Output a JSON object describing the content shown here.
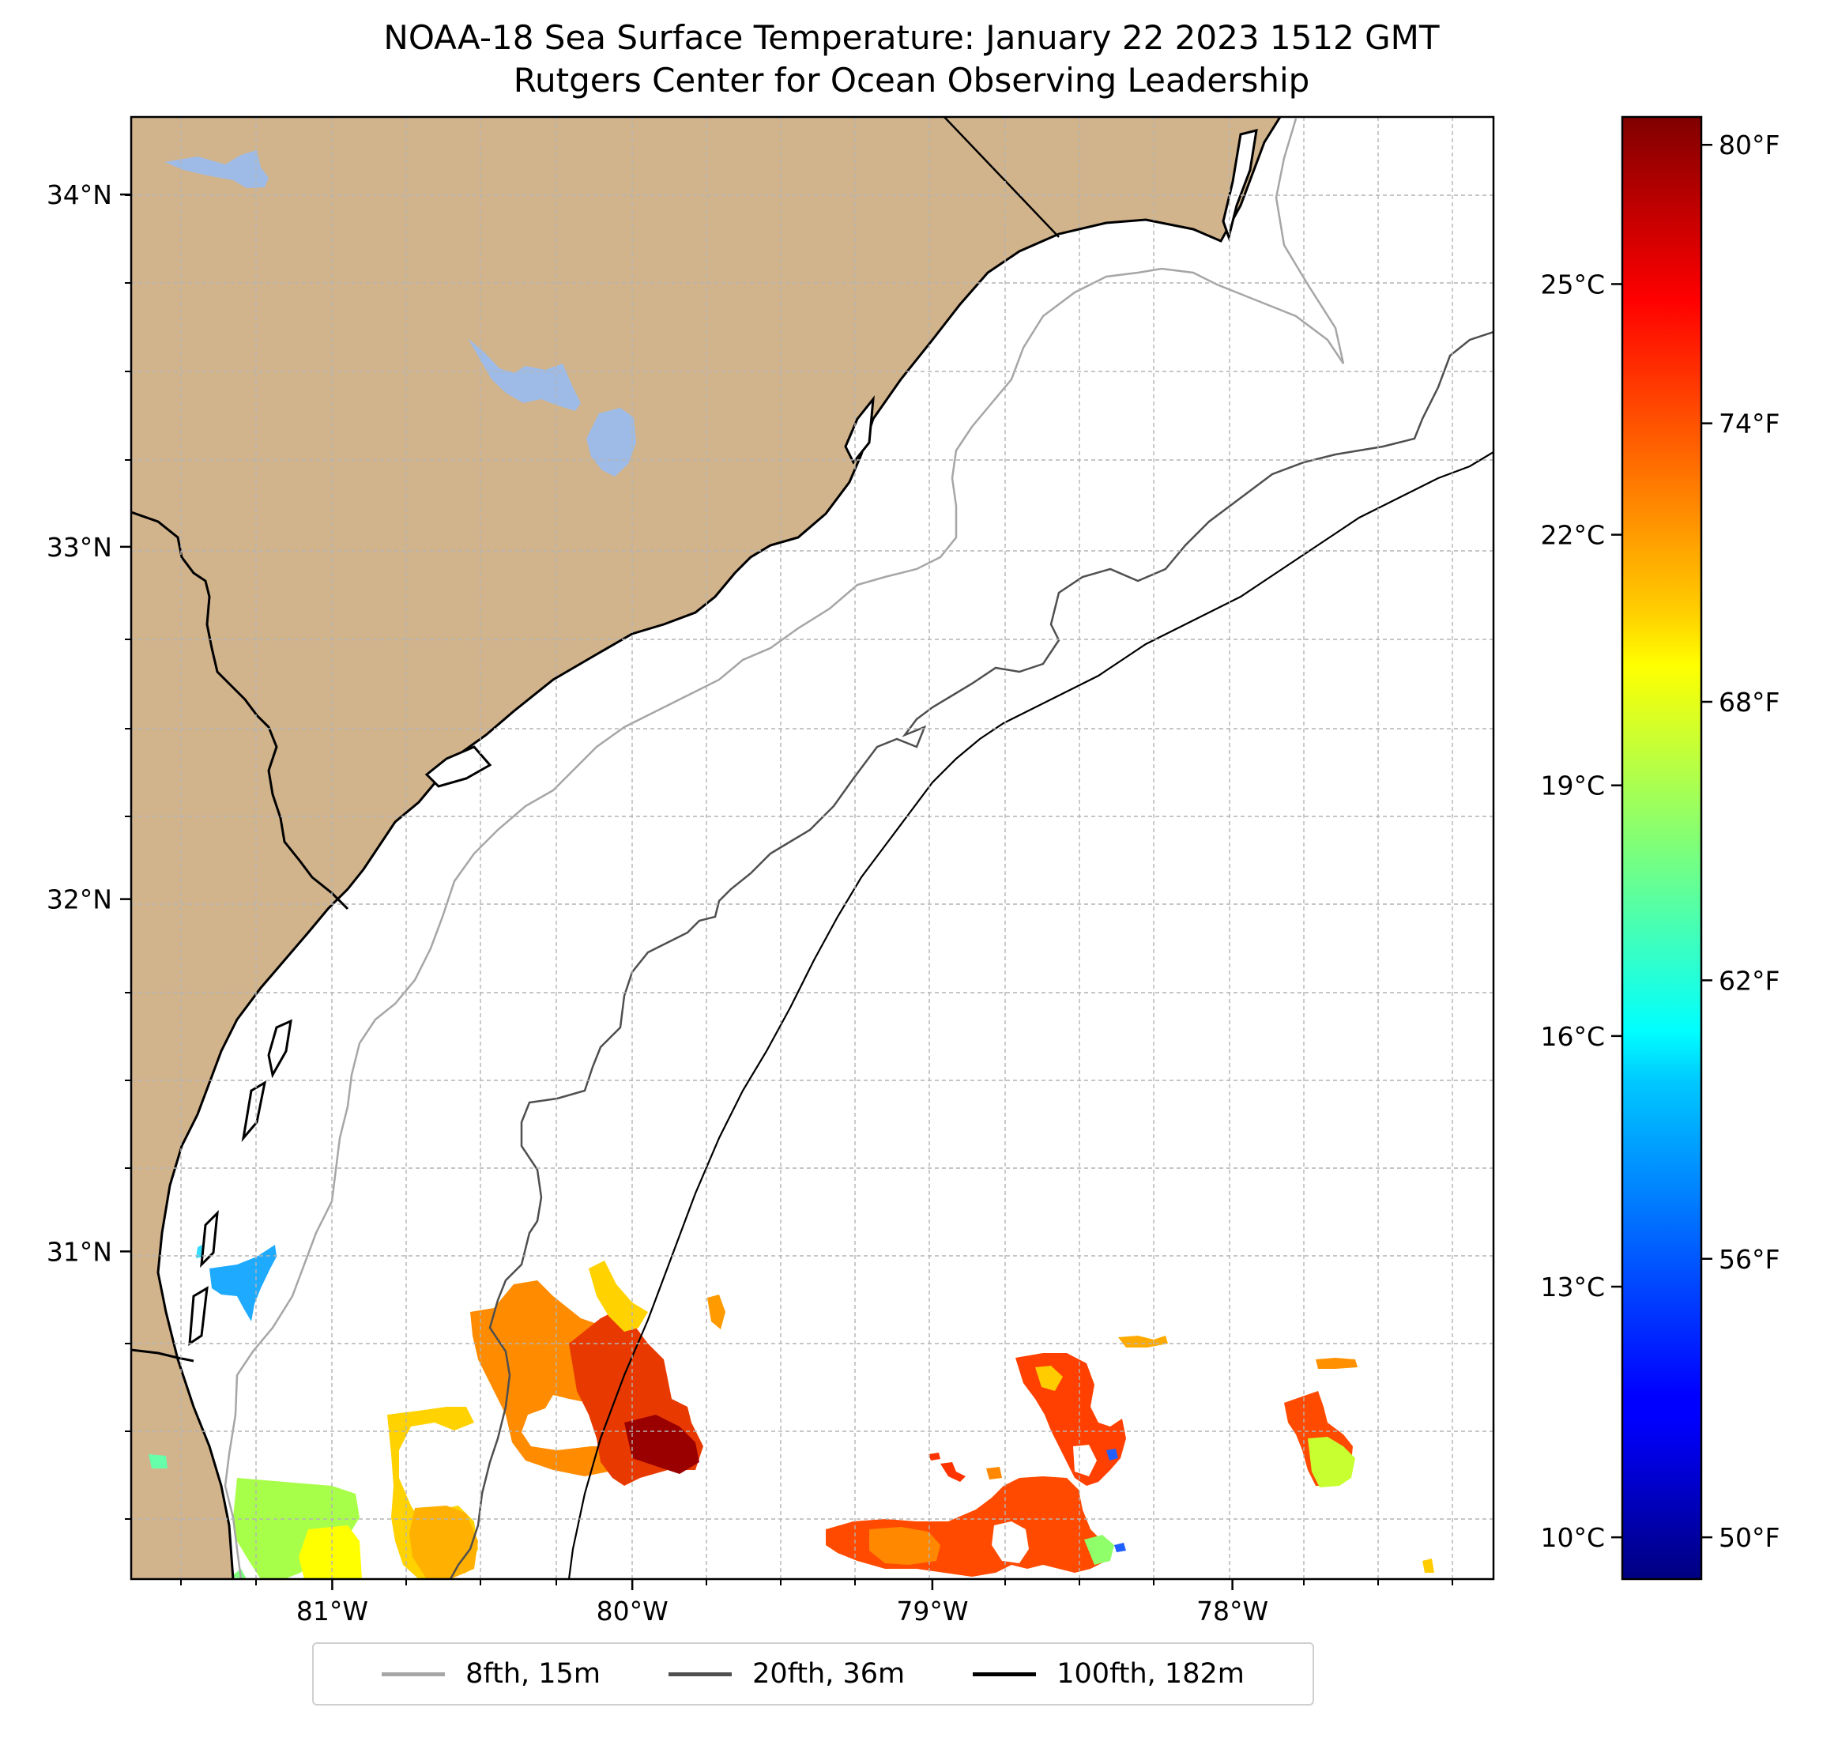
{
  "title": {
    "line1": "NOAA-18 Sea Surface Temperature: January 22 2023 1512 GMT",
    "line2": "Rutgers Center for Ocean Observing Leadership"
  },
  "map": {
    "extent": {
      "lon_min": -81.67,
      "lon_max": -77.13,
      "lat_min": 30.07,
      "lat_max": 34.22
    },
    "lon_ticks": [
      {
        "value": -81,
        "label": "81°W"
      },
      {
        "value": -80,
        "label": "80°W"
      },
      {
        "value": -79,
        "label": "79°W"
      },
      {
        "value": -78,
        "label": "78°W"
      }
    ],
    "lat_ticks": [
      {
        "value": 34,
        "label": "34°N"
      },
      {
        "value": 33,
        "label": "33°N"
      },
      {
        "value": 32,
        "label": "32°N"
      },
      {
        "value": 31,
        "label": "31°N"
      }
    ],
    "gridlines": true,
    "colors": {
      "land": "#d2b48c",
      "lakes": "#9dbbe6",
      "coast": "#000000",
      "grid": "#b4b4b4",
      "isobath_8fth": "#a6a6a6",
      "isobath_20fth": "#4f4f4f",
      "isobath_100fth": "#000000"
    }
  },
  "colorbar": {
    "colormap": "jet",
    "range_c": [
      9.5,
      27.0
    ],
    "celsius_ticks": [
      {
        "value": 10,
        "label": "10°C"
      },
      {
        "value": 13,
        "label": "13°C"
      },
      {
        "value": 16,
        "label": "16°C"
      },
      {
        "value": 19,
        "label": "19°C"
      },
      {
        "value": 22,
        "label": "22°C"
      },
      {
        "value": 25,
        "label": "25°C"
      }
    ],
    "fahrenheit_ticks": [
      {
        "value": 50,
        "label": "50°F"
      },
      {
        "value": 56,
        "label": "56°F"
      },
      {
        "value": 62,
        "label": "62°F"
      },
      {
        "value": 68,
        "label": "68°F"
      },
      {
        "value": 74,
        "label": "74°F"
      },
      {
        "value": 80,
        "label": "80°F"
      }
    ]
  },
  "legend": [
    {
      "label": "8fth, 15m",
      "color": "#a6a6a6"
    },
    {
      "label": "20fth, 36m",
      "color": "#4f4f4f"
    },
    {
      "label": "100fth, 182m",
      "color": "#000000"
    }
  ]
}
